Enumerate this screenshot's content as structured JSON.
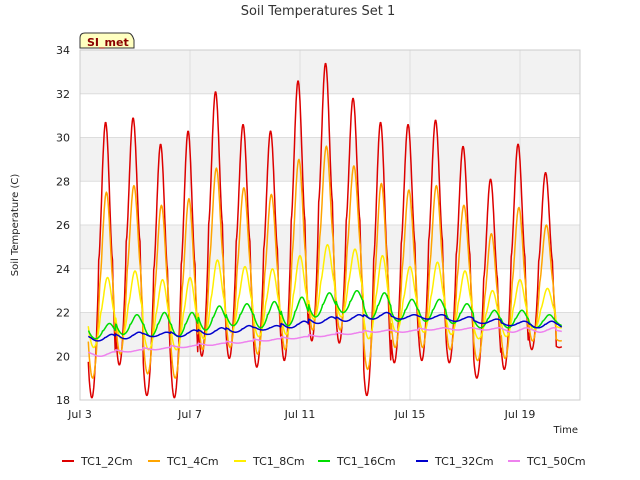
{
  "chart_data": {
    "type": "line",
    "title": "Soil Temperatures Set 1",
    "xlabel": "Time",
    "ylabel": "Soil Temperature (C)",
    "badge": "SI_met",
    "xlim": [
      "Jul 3",
      "Jul 21"
    ],
    "ylim": [
      18,
      34
    ],
    "x_ticks": [
      "Jul 3",
      "Jul 7",
      "Jul 11",
      "Jul 15",
      "Jul 19"
    ],
    "y_ticks": [
      18,
      20,
      22,
      24,
      26,
      28,
      30,
      32,
      34
    ],
    "grid": true,
    "legend_position": "bottom",
    "daily_series": {
      "days": [
        "Jul 3",
        "Jul 4",
        "Jul 5",
        "Jul 6",
        "Jul 7",
        "Jul 8",
        "Jul 9",
        "Jul 10",
        "Jul 11",
        "Jul 12",
        "Jul 13",
        "Jul 14",
        "Jul 15",
        "Jul 16",
        "Jul 17",
        "Jul 18",
        "Jul 19",
        "Jul 20"
      ],
      "series": [
        {
          "name": "TC1_2Cm",
          "color": "#dd0000",
          "daily_max": [
            30.7,
            30.9,
            29.7,
            30.3,
            32.1,
            30.6,
            30.3,
            32.6,
            33.4,
            31.8,
            30.7,
            30.6,
            30.8,
            29.6,
            28.1,
            29.7,
            28.4,
            21.0
          ],
          "daily_min": [
            18.1,
            19.6,
            18.2,
            18.1,
            20.0,
            19.9,
            19.5,
            19.8,
            20.7,
            20.6,
            18.2,
            19.7,
            19.8,
            19.7,
            19.0,
            19.4,
            20.3,
            20.4
          ]
        },
        {
          "name": "TC1_4Cm",
          "color": "#ffa500",
          "daily_max": [
            27.5,
            27.8,
            26.9,
            27.2,
            28.6,
            27.7,
            27.4,
            29.0,
            29.6,
            28.7,
            27.9,
            27.6,
            27.8,
            26.9,
            25.6,
            26.8,
            26.0,
            21.3
          ],
          "daily_min": [
            19.0,
            20.1,
            19.2,
            19.0,
            20.3,
            20.4,
            20.1,
            20.3,
            21.2,
            21.2,
            19.4,
            20.4,
            20.4,
            20.3,
            19.8,
            19.9,
            20.7,
            20.7
          ]
        },
        {
          "name": "TC1_8Cm",
          "color": "#ffee00",
          "daily_max": [
            23.6,
            23.9,
            23.5,
            23.6,
            24.4,
            24.1,
            24.0,
            24.6,
            25.1,
            24.9,
            24.6,
            24.1,
            24.3,
            23.9,
            23.0,
            23.5,
            23.1,
            21.6
          ],
          "daily_min": [
            20.4,
            20.8,
            20.3,
            20.3,
            20.8,
            21.1,
            20.9,
            21.0,
            21.7,
            21.8,
            20.8,
            21.1,
            21.1,
            21.0,
            20.8,
            20.9,
            21.2,
            21.3
          ]
        },
        {
          "name": "TC1_16Cm",
          "color": "#00dd00",
          "daily_max": [
            21.5,
            21.9,
            22.0,
            22.0,
            22.3,
            22.4,
            22.5,
            22.7,
            22.9,
            23.0,
            22.9,
            22.6,
            22.6,
            22.4,
            22.1,
            22.1,
            21.9,
            21.8
          ],
          "daily_min": [
            20.8,
            21.0,
            20.9,
            20.9,
            21.2,
            21.4,
            21.3,
            21.4,
            21.8,
            22.0,
            21.7,
            21.6,
            21.6,
            21.5,
            21.3,
            21.3,
            21.3,
            21.4
          ]
        },
        {
          "name": "TC1_32Cm",
          "color": "#0000cc",
          "daily_max": [
            21.0,
            21.1,
            21.1,
            21.2,
            21.3,
            21.4,
            21.4,
            21.6,
            21.8,
            21.9,
            22.0,
            21.9,
            21.9,
            21.8,
            21.7,
            21.6,
            21.6,
            21.6
          ],
          "daily_min": [
            20.7,
            20.8,
            20.9,
            20.9,
            21.0,
            21.1,
            21.2,
            21.3,
            21.5,
            21.6,
            21.7,
            21.7,
            21.7,
            21.6,
            21.5,
            21.4,
            21.3,
            21.3
          ]
        },
        {
          "name": "TC1_50Cm",
          "color": "#ee82ee",
          "daily_max": [
            20.2,
            20.3,
            20.4,
            20.5,
            20.6,
            20.7,
            20.8,
            20.9,
            21.0,
            21.1,
            21.2,
            21.2,
            21.3,
            21.3,
            21.3,
            21.3,
            21.3,
            21.2
          ],
          "daily_min": [
            20.0,
            20.2,
            20.3,
            20.4,
            20.5,
            20.6,
            20.7,
            20.8,
            20.9,
            21.0,
            21.1,
            21.1,
            21.2,
            21.2,
            21.2,
            21.1,
            21.1,
            21.1
          ]
        }
      ]
    }
  }
}
